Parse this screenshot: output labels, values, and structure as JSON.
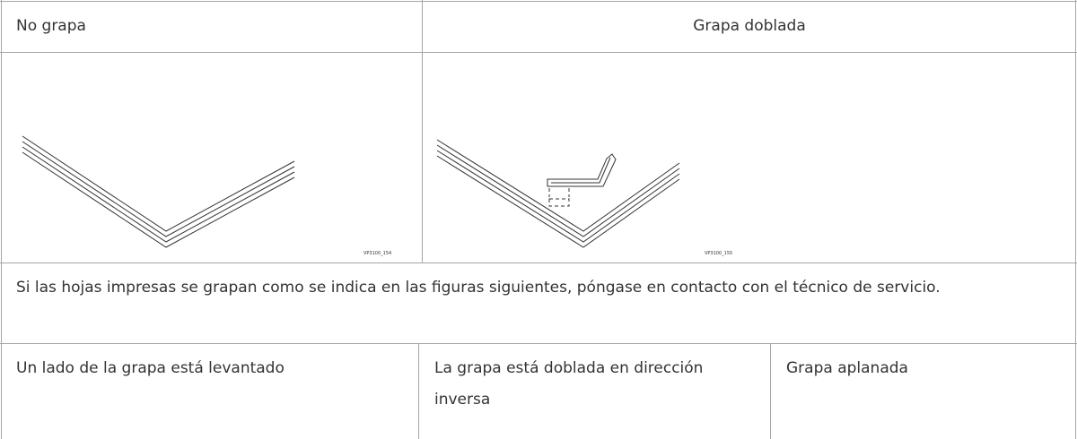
{
  "table": {
    "header": [
      "No grapa",
      "Grapa doblada"
    ],
    "figure_labels": [
      "VP3100_154",
      "VP3100_155"
    ],
    "note": "Si las hojas impresas se grapan como se indica en las figuras siguientes, póngase en contacto con el técnico de servicio.",
    "bottom": [
      "Un lado de la grapa está levantado",
      "La grapa está doblada en dirección inversa",
      "Grapa aplanada"
    ]
  }
}
